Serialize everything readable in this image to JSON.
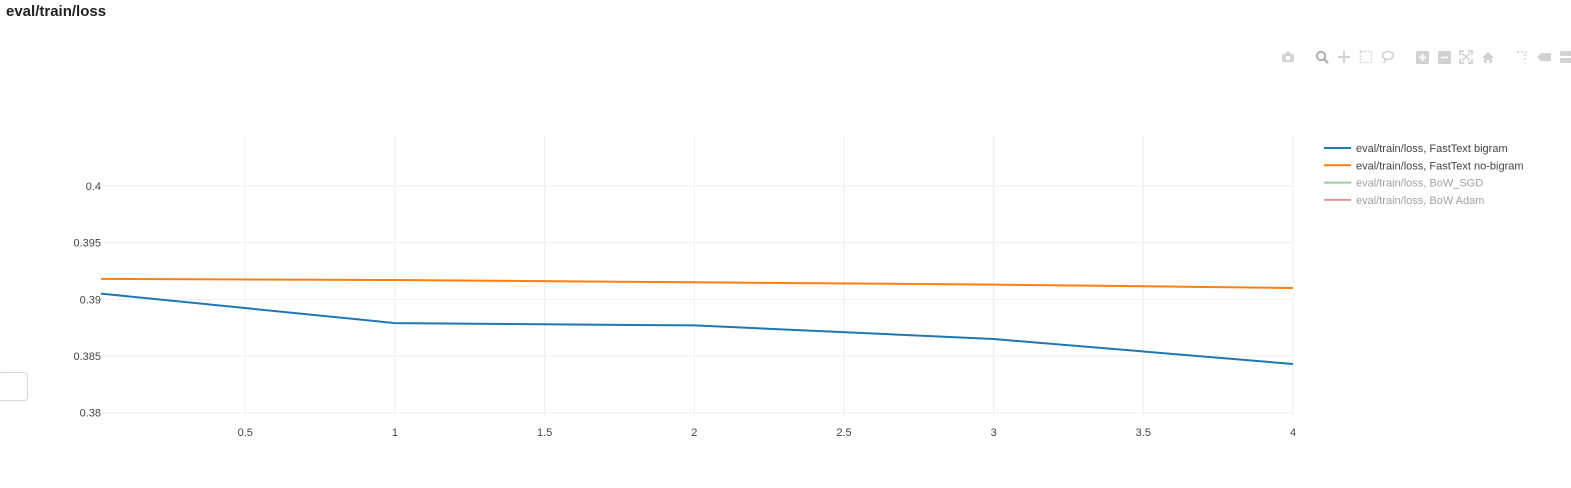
{
  "panel": {
    "title": "eval/train/loss"
  },
  "modebar": {
    "buttons": [
      {
        "name": "camera-icon"
      },
      {
        "name": "zoom-icon"
      },
      {
        "name": "pan-icon"
      },
      {
        "name": "box-select-icon"
      },
      {
        "name": "lasso-icon"
      },
      {
        "name": "zoom-in-icon"
      },
      {
        "name": "zoom-out-icon"
      },
      {
        "name": "autoscale-icon"
      },
      {
        "name": "home-icon"
      },
      {
        "name": "spike-lines-icon"
      },
      {
        "name": "hover-closest-icon"
      },
      {
        "name": "hover-compare-icon"
      }
    ]
  },
  "chart_data": {
    "type": "line",
    "title": "",
    "xlabel": "",
    "ylabel": "",
    "xlim": [
      0.018,
      4
    ],
    "ylim": [
      0.3798,
      0.4044
    ],
    "xticks": [
      0.5,
      1,
      1.5,
      2,
      2.5,
      3,
      3.5,
      4
    ],
    "xtick_labels": [
      "0.5",
      "1",
      "1.5",
      "2",
      "2.5",
      "3",
      "3.5",
      "4"
    ],
    "yticks": [
      0.38,
      0.385,
      0.39,
      0.395,
      0.4
    ],
    "ytick_labels": [
      "0.38",
      "0.385",
      "0.39",
      "0.395",
      "0.4"
    ],
    "grid": true,
    "legend_position": "right",
    "series": [
      {
        "name": "eval/train/loss, FastText bigram",
        "color": "#1f77b4",
        "visible": true,
        "points": [
          [
            0.018,
            0.3905
          ],
          [
            1,
            0.3879
          ],
          [
            2,
            0.3877
          ],
          [
            3,
            0.3865
          ],
          [
            4,
            0.3843
          ]
        ]
      },
      {
        "name": "eval/train/loss, FastText no-bigram",
        "color": "#ff7f0e",
        "visible": true,
        "points": [
          [
            0.018,
            0.3918
          ],
          [
            1,
            0.3917
          ],
          [
            2,
            0.3915
          ],
          [
            3,
            0.3913
          ],
          [
            4,
            0.391
          ]
        ]
      },
      {
        "name": "eval/train/loss, BoW_SGD",
        "color": "#2ca02c",
        "visible": false,
        "points": []
      },
      {
        "name": "eval/train/loss, BoW Adam",
        "color": "#d62728",
        "visible": false,
        "points": []
      }
    ]
  }
}
